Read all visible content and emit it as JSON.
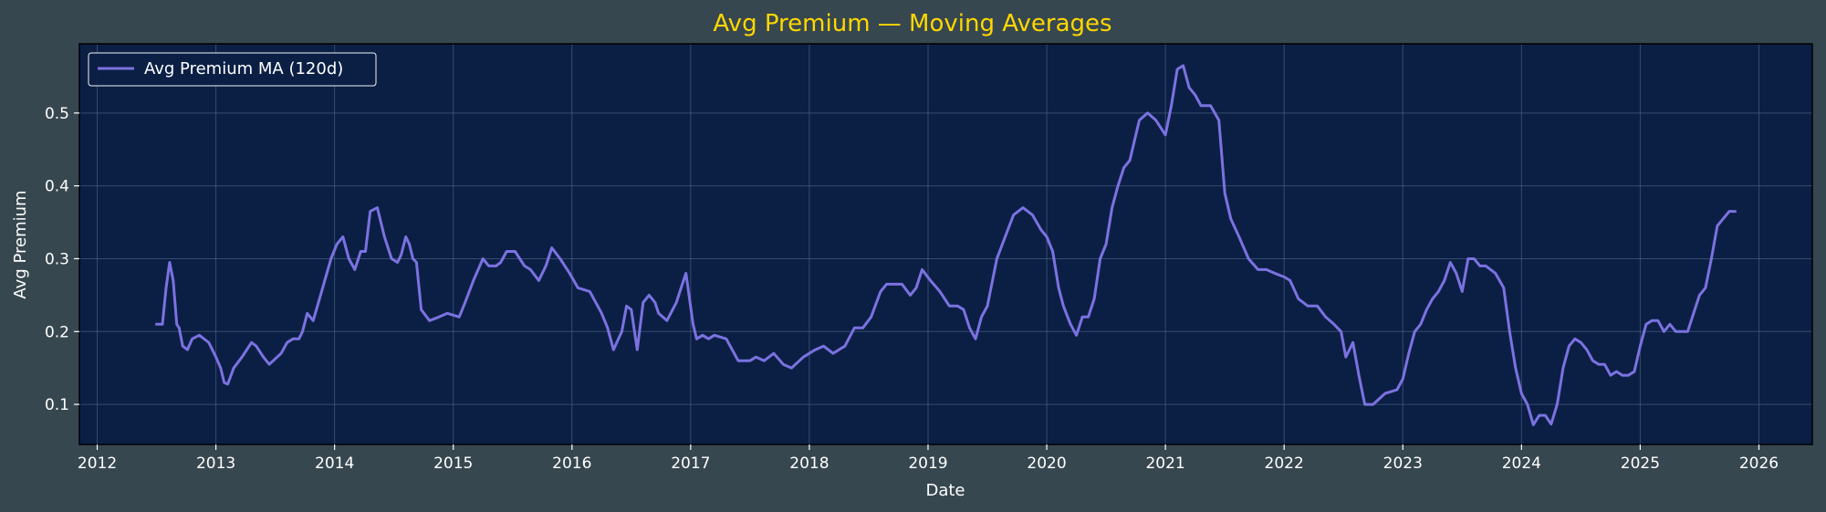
{
  "chart_data": {
    "type": "line",
    "title": "Avg Premium — Moving Averages",
    "xlabel": "Date",
    "ylabel": "Avg Premium",
    "xlim": [
      2011.85,
      2026.45
    ],
    "ylim": [
      0.045,
      0.595
    ],
    "x_ticks": [
      2012,
      2013,
      2014,
      2015,
      2016,
      2017,
      2018,
      2019,
      2020,
      2021,
      2022,
      2023,
      2024,
      2025,
      2026
    ],
    "x_tick_labels": [
      "2012",
      "2013",
      "2014",
      "2015",
      "2016",
      "2017",
      "2018",
      "2019",
      "2020",
      "2021",
      "2022",
      "2023",
      "2024",
      "2025",
      "2026"
    ],
    "y_ticks": [
      0.1,
      0.2,
      0.3,
      0.4,
      0.5
    ],
    "y_tick_labels": [
      "0.1",
      "0.2",
      "0.3",
      "0.4",
      "0.5"
    ],
    "grid": true,
    "legend_position": "top-left",
    "colors": {
      "figure_bg": "#37474f",
      "axes_bg": "#0b1f45",
      "series": "#7b72e0",
      "title": "#ffd700",
      "text": "#ffffff",
      "grid": "#5a6f8c"
    },
    "series": [
      {
        "name": "Avg Premium MA (120d)",
        "x": [
          2012.5,
          2012.55,
          2012.58,
          2012.61,
          2012.64,
          2012.67,
          2012.69,
          2012.72,
          2012.76,
          2012.8,
          2012.86,
          2012.94,
          2013.0,
          2013.04,
          2013.07,
          2013.1,
          2013.15,
          2013.22,
          2013.3,
          2013.34,
          2013.4,
          2013.45,
          2013.55,
          2013.6,
          2013.65,
          2013.7,
          2013.73,
          2013.77,
          2013.82,
          2013.9,
          2013.97,
          2014.02,
          2014.07,
          2014.12,
          2014.17,
          2014.22,
          2014.26,
          2014.3,
          2014.36,
          2014.42,
          2014.48,
          2014.53,
          2014.56,
          2014.6,
          2014.63,
          2014.66,
          2014.69,
          2014.73,
          2014.8,
          2014.88,
          2014.95,
          2015.05,
          2015.1,
          2015.17,
          2015.25,
          2015.3,
          2015.36,
          2015.4,
          2015.45,
          2015.52,
          2015.6,
          2015.65,
          2015.72,
          2015.78,
          2015.83,
          2015.9,
          2015.98,
          2016.05,
          2016.15,
          2016.25,
          2016.3,
          2016.35,
          2016.42,
          2016.46,
          2016.5,
          2016.55,
          2016.6,
          2016.65,
          2016.7,
          2016.73,
          2016.8,
          2016.88,
          2016.92,
          2016.96,
          2017.02,
          2017.05,
          2017.1,
          2017.15,
          2017.2,
          2017.3,
          2017.4,
          2017.5,
          2017.55,
          2017.62,
          2017.7,
          2017.78,
          2017.85,
          2017.95,
          2018.05,
          2018.12,
          2018.2,
          2018.3,
          2018.38,
          2018.45,
          2018.52,
          2018.6,
          2018.65,
          2018.7,
          2018.78,
          2018.85,
          2018.9,
          2018.95,
          2019.02,
          2019.1,
          2019.18,
          2019.25,
          2019.3,
          2019.35,
          2019.4,
          2019.45,
          2019.5,
          2019.58,
          2019.65,
          2019.72,
          2019.8,
          2019.88,
          2019.95,
          2020.0,
          2020.05,
          2020.1,
          2020.14,
          2020.2,
          2020.25,
          2020.3,
          2020.35,
          2020.4,
          2020.45,
          2020.5,
          2020.55,
          2020.6,
          2020.65,
          2020.7,
          2020.78,
          2020.85,
          2020.92,
          2021.0,
          2021.05,
          2021.1,
          2021.15,
          2021.2,
          2021.25,
          2021.3,
          2021.38,
          2021.45,
          2021.5,
          2021.55,
          2021.62,
          2021.7,
          2021.78,
          2021.85,
          2021.92,
          2022.0,
          2022.05,
          2022.12,
          2022.2,
          2022.28,
          2022.35,
          2022.42,
          2022.48,
          2022.52,
          2022.58,
          2022.63,
          2022.68,
          2022.75,
          2022.85,
          2022.95,
          2023.0,
          2023.05,
          2023.1,
          2023.15,
          2023.2,
          2023.25,
          2023.3,
          2023.35,
          2023.4,
          2023.45,
          2023.5,
          2023.55,
          2023.6,
          2023.65,
          2023.7,
          2023.78,
          2023.85,
          2023.9,
          2023.95,
          2024.0,
          2024.05,
          2024.1,
          2024.15,
          2024.2,
          2024.25,
          2024.3,
          2024.35,
          2024.4,
          2024.45,
          2024.5,
          2024.55,
          2024.6,
          2024.65,
          2024.7,
          2024.75,
          2024.8,
          2024.85,
          2024.9,
          2024.95,
          2025.0,
          2025.05,
          2025.1,
          2025.15,
          2025.2,
          2025.25,
          2025.3,
          2025.35,
          2025.4,
          2025.45,
          2025.5,
          2025.55,
          2025.6,
          2025.65,
          2025.7,
          2025.75,
          2025.8
        ],
        "values": [
          0.21,
          0.21,
          0.26,
          0.295,
          0.27,
          0.21,
          0.205,
          0.18,
          0.175,
          0.19,
          0.195,
          0.185,
          0.165,
          0.15,
          0.13,
          0.128,
          0.15,
          0.165,
          0.185,
          0.18,
          0.165,
          0.155,
          0.17,
          0.185,
          0.19,
          0.19,
          0.2,
          0.225,
          0.215,
          0.26,
          0.3,
          0.32,
          0.33,
          0.3,
          0.285,
          0.31,
          0.31,
          0.365,
          0.37,
          0.33,
          0.3,
          0.295,
          0.305,
          0.33,
          0.32,
          0.3,
          0.295,
          0.23,
          0.215,
          0.22,
          0.225,
          0.22,
          0.24,
          0.27,
          0.3,
          0.29,
          0.29,
          0.295,
          0.31,
          0.31,
          0.29,
          0.285,
          0.27,
          0.29,
          0.315,
          0.3,
          0.28,
          0.26,
          0.255,
          0.225,
          0.205,
          0.175,
          0.2,
          0.235,
          0.23,
          0.175,
          0.24,
          0.25,
          0.24,
          0.225,
          0.215,
          0.24,
          0.26,
          0.28,
          0.21,
          0.19,
          0.195,
          0.19,
          0.195,
          0.19,
          0.16,
          0.16,
          0.165,
          0.16,
          0.17,
          0.155,
          0.15,
          0.165,
          0.175,
          0.18,
          0.17,
          0.18,
          0.205,
          0.205,
          0.22,
          0.255,
          0.265,
          0.265,
          0.265,
          0.25,
          0.26,
          0.285,
          0.27,
          0.255,
          0.235,
          0.235,
          0.23,
          0.205,
          0.19,
          0.22,
          0.235,
          0.3,
          0.33,
          0.36,
          0.37,
          0.36,
          0.34,
          0.33,
          0.31,
          0.26,
          0.235,
          0.21,
          0.195,
          0.22,
          0.22,
          0.245,
          0.3,
          0.32,
          0.37,
          0.4,
          0.425,
          0.435,
          0.49,
          0.5,
          0.49,
          0.47,
          0.51,
          0.56,
          0.565,
          0.535,
          0.525,
          0.51,
          0.51,
          0.49,
          0.39,
          0.355,
          0.33,
          0.3,
          0.285,
          0.285,
          0.28,
          0.275,
          0.27,
          0.245,
          0.235,
          0.235,
          0.22,
          0.21,
          0.2,
          0.165,
          0.185,
          0.14,
          0.1,
          0.1,
          0.115,
          0.12,
          0.135,
          0.17,
          0.2,
          0.21,
          0.23,
          0.245,
          0.255,
          0.27,
          0.295,
          0.28,
          0.255,
          0.3,
          0.3,
          0.29,
          0.29,
          0.28,
          0.26,
          0.2,
          0.15,
          0.115,
          0.1,
          0.072,
          0.085,
          0.085,
          0.073,
          0.1,
          0.15,
          0.18,
          0.19,
          0.185,
          0.175,
          0.16,
          0.155,
          0.155,
          0.14,
          0.145,
          0.14,
          0.14,
          0.145,
          0.18,
          0.21,
          0.215,
          0.215,
          0.2,
          0.21,
          0.2,
          0.2,
          0.2,
          0.225,
          0.25,
          0.26,
          0.3,
          0.345,
          0.355,
          0.365,
          0.365
        ]
      }
    ]
  }
}
